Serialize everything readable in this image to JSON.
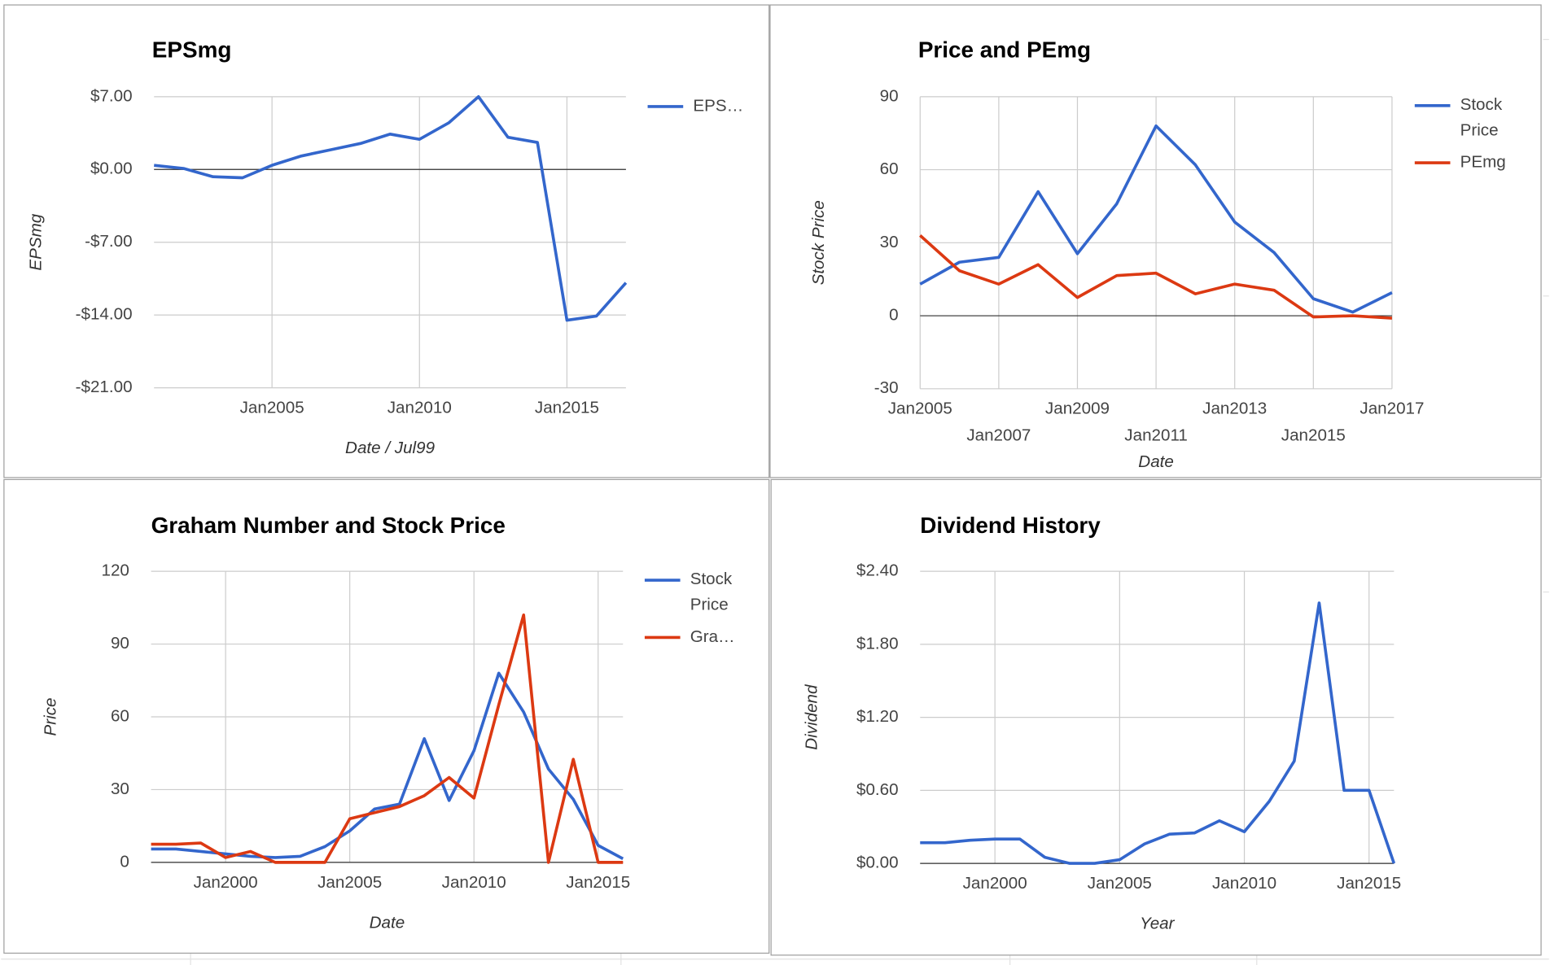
{
  "chart_data": [
    {
      "type": "line",
      "title": "EPSmg",
      "xlabel": "Date / Jul99",
      "ylabel": "EPSmg",
      "x": [
        2001,
        2002,
        2003,
        2004,
        2005,
        2006,
        2007,
        2008,
        2009,
        2010,
        2011,
        2012,
        2013,
        2014,
        2015,
        2016,
        2017
      ],
      "series": [
        {
          "name": "EPS…",
          "color": "#3366cc",
          "values": [
            0.4,
            0.1,
            -0.7,
            -0.8,
            0.4,
            1.3,
            1.9,
            2.5,
            3.4,
            2.9,
            4.5,
            7.0,
            3.1,
            2.6,
            -14.5,
            -14.1,
            -10.9
          ]
        }
      ],
      "xlim": [
        2001,
        2017
      ],
      "xticks": [
        {
          "value": 2005,
          "label": "Jan2005"
        },
        {
          "value": 2010,
          "label": "Jan2010"
        },
        {
          "value": 2015,
          "label": "Jan2015"
        }
      ],
      "ylim": [
        -21,
        7
      ],
      "yticks": [
        {
          "value": -21,
          "label": "-$21.00"
        },
        {
          "value": -14,
          "label": "-$14.00"
        },
        {
          "value": -7,
          "label": "-$7.00"
        },
        {
          "value": 0,
          "label": "$0.00"
        },
        {
          "value": 7,
          "label": "$7.00"
        }
      ],
      "grid": true,
      "legend": "right"
    },
    {
      "type": "line",
      "title": "Price and PEmg",
      "xlabel": "Date",
      "ylabel": "Stock Price",
      "x": [
        2005,
        2006,
        2007,
        2008,
        2009,
        2010,
        2011,
        2012,
        2013,
        2014,
        2015,
        2016,
        2017
      ],
      "series": [
        {
          "name": "Stock Price",
          "color": "#3366cc",
          "values": [
            13,
            22,
            24,
            51,
            25.5,
            46,
            78,
            62,
            38.5,
            26,
            7,
            1.5,
            9.5
          ]
        },
        {
          "name": "PEmg",
          "color": "#dc3912",
          "values": [
            33,
            18.5,
            13,
            21,
            7.5,
            16.5,
            17.5,
            9,
            13,
            10.5,
            -0.5,
            0,
            -1
          ]
        }
      ],
      "xlim": [
        2005,
        2017
      ],
      "xticks": [
        {
          "value": 2005,
          "label": "Jan2005"
        },
        {
          "value": 2007,
          "label": "Jan2007"
        },
        {
          "value": 2009,
          "label": "Jan2009"
        },
        {
          "value": 2011,
          "label": "Jan2011"
        },
        {
          "value": 2013,
          "label": "Jan2013"
        },
        {
          "value": 2015,
          "label": "Jan2015"
        },
        {
          "value": 2017,
          "label": "Jan2017"
        }
      ],
      "ylim": [
        -30,
        90
      ],
      "yticks": [
        -30,
        0,
        30,
        60,
        90
      ],
      "grid": true,
      "legend": "right"
    },
    {
      "type": "line",
      "title": "Graham Number and Stock Price",
      "xlabel": "Date",
      "ylabel": "Price",
      "x": [
        1997,
        1998,
        1999,
        2000,
        2001,
        2002,
        2003,
        2004,
        2005,
        2006,
        2007,
        2008,
        2009,
        2010,
        2011,
        2012,
        2013,
        2014,
        2015,
        2016
      ],
      "series": [
        {
          "name": "Stock Price",
          "color": "#3366cc",
          "values": [
            5.5,
            5.5,
            4.5,
            3.5,
            2.5,
            2,
            2.5,
            6.5,
            13,
            22,
            24,
            51,
            25.5,
            46,
            78,
            62,
            38.5,
            26,
            7,
            1.5
          ]
        },
        {
          "name": "Gra…",
          "color": "#dc3912",
          "values": [
            7.5,
            7.5,
            8,
            2,
            4.5,
            0,
            0,
            0,
            18,
            20.5,
            23,
            27.5,
            35,
            26.5,
            65,
            102,
            0,
            42.5,
            0,
            0
          ]
        }
      ],
      "xlim": [
        1997,
        2016
      ],
      "xticks": [
        {
          "value": 2000,
          "label": "Jan2000"
        },
        {
          "value": 2005,
          "label": "Jan2005"
        },
        {
          "value": 2010,
          "label": "Jan2010"
        },
        {
          "value": 2015,
          "label": "Jan2015"
        }
      ],
      "ylim": [
        0,
        120
      ],
      "yticks": [
        0,
        30,
        60,
        90,
        120
      ],
      "grid": true,
      "legend": "right"
    },
    {
      "type": "line",
      "title": "Dividend History",
      "xlabel": "Year",
      "ylabel": "Dividend",
      "x": [
        1997,
        1998,
        1999,
        2000,
        2001,
        2002,
        2003,
        2004,
        2005,
        2006,
        2007,
        2008,
        2009,
        2010,
        2011,
        2012,
        2013,
        2014,
        2015,
        2016
      ],
      "series": [
        {
          "name": "Dividend",
          "color": "#3366cc",
          "values": [
            0.17,
            0.17,
            0.19,
            0.2,
            0.2,
            0.05,
            0,
            0,
            0.03,
            0.16,
            0.24,
            0.25,
            0.35,
            0.26,
            0.51,
            0.84,
            2.14,
            0.6,
            0.6,
            0
          ]
        }
      ],
      "xlim": [
        1997,
        2016
      ],
      "xticks": [
        {
          "value": 2000,
          "label": "Jan2000"
        },
        {
          "value": 2005,
          "label": "Jan2005"
        },
        {
          "value": 2010,
          "label": "Jan2010"
        },
        {
          "value": 2015,
          "label": "Jan2015"
        }
      ],
      "ylim": [
        0,
        2.4
      ],
      "yticks": [
        {
          "value": 0,
          "label": "$0.00"
        },
        {
          "value": 0.6,
          "label": "$0.60"
        },
        {
          "value": 1.2,
          "label": "$1.20"
        },
        {
          "value": 1.8,
          "label": "$1.80"
        },
        {
          "value": 2.4,
          "label": "$2.40"
        }
      ],
      "grid": true
    }
  ]
}
